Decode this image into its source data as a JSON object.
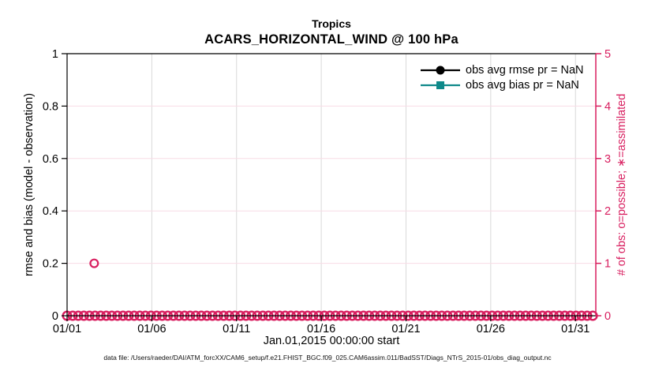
{
  "chart_data": {
    "type": "scatter",
    "title": "Tropics",
    "subtitle": "ACARS_HORIZONTAL_WIND @ 100 hPa",
    "xlabel": "Jan.01,2015 00:00:00 start",
    "x_tick_labels": [
      "01/01",
      "01/06",
      "01/11",
      "01/16",
      "01/21",
      "01/26",
      "01/31"
    ],
    "x_tick_days": [
      1,
      6,
      11,
      16,
      21,
      26,
      31
    ],
    "x_range_days": [
      1,
      32.2
    ],
    "left_axis": {
      "label": "rmse and bias (model - observation)",
      "ticks": [
        0,
        0.2,
        0.4,
        0.6,
        0.8,
        1
      ],
      "tick_labels": [
        "0",
        "0.2",
        "0.4",
        "0.6",
        "0.8",
        "1"
      ],
      "range": [
        0,
        1
      ],
      "color": "#000000"
    },
    "right_axis": {
      "label": "# of obs: o=possible; ∗=assimilated",
      "ticks": [
        0,
        1,
        2,
        3,
        4,
        5
      ],
      "tick_labels": [
        "0",
        "1",
        "2",
        "3",
        "4",
        "5"
      ],
      "range": [
        0,
        5
      ],
      "color": "#d81e5f"
    },
    "legend": {
      "position": "top-right-inside",
      "items": [
        {
          "label": "obs avg rmse pr = NaN",
          "color": "#000000",
          "marker": "filled-circle"
        },
        {
          "label": "obs avg bias pr = NaN",
          "color": "#0f898a",
          "marker": "filled-square"
        }
      ]
    },
    "series": [
      {
        "name": "possible obs count",
        "axis": "right",
        "marker": "open-circle",
        "color": "#d81e5f",
        "points": [
          {
            "day": 2.6,
            "value": 1
          }
        ],
        "zero_band": {
          "start_day": 1,
          "end_day": 32.2,
          "value": 0,
          "marker_step_days": 0.33
        }
      }
    ],
    "grid": {
      "vertical_color": "#d9d9d9",
      "horizontal_color": "#f8dce6",
      "horizontal_at_right_values": [
        1,
        2,
        3,
        4
      ]
    }
  },
  "footer": {
    "text": "data file: /Users/raeder/DAI/ATM_forcXX/CAM6_setup/f.e21.FHIST_BGC.f09_025.CAM6assim.011/BadSST/Diags_NTrS_2015-01/obs_diag_output.nc"
  }
}
